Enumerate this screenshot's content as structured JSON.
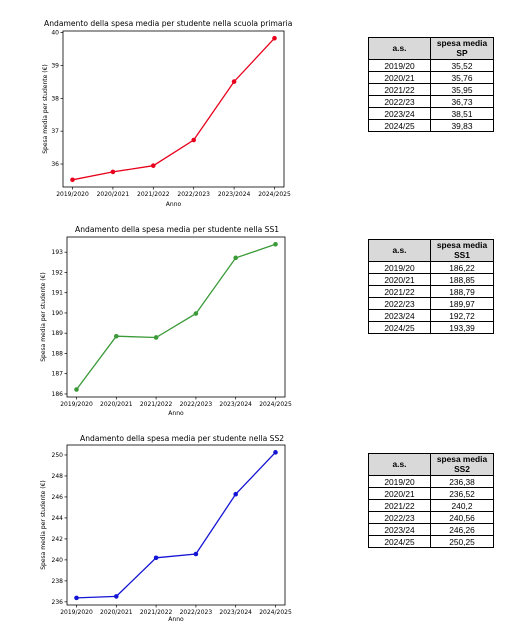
{
  "chart_data": [
    {
      "type": "line",
      "title": "Andamento della spesa media per studente nella scuola primaria",
      "xlabel": "Anno",
      "ylabel": "Spesa media per studente (€)",
      "categories": [
        "2019/2020",
        "2020/2021",
        "2021/2022",
        "2022/2023",
        "2023/2024",
        "2024/2025"
      ],
      "values": [
        35.52,
        35.76,
        35.95,
        36.73,
        38.51,
        39.83
      ],
      "ylim": [
        35.3,
        40.05
      ],
      "yticks": [
        36,
        37,
        38,
        39,
        40
      ],
      "color": "#e8001c",
      "grid": false,
      "legend": false
    },
    {
      "type": "line",
      "title": "Andamento della spesa media per studente nella SS1",
      "xlabel": "Anno",
      "ylabel": "Spesa media per studente (€)",
      "categories": [
        "2019/2020",
        "2020/2021",
        "2021/2022",
        "2022/2023",
        "2023/2024",
        "2024/2025"
      ],
      "values": [
        186.22,
        188.85,
        188.79,
        189.97,
        192.72,
        193.39
      ],
      "ylim": [
        185.85,
        193.75
      ],
      "yticks": [
        186,
        187,
        188,
        189,
        190,
        191,
        192,
        193
      ],
      "color": "#3a9a38",
      "grid": false,
      "legend": false
    },
    {
      "type": "line",
      "title": "Andamento della spesa media per studente nella SS2",
      "xlabel": "Anno",
      "ylabel": "Spesa media per studente (€)",
      "categories": [
        "2019/2020",
        "2020/2021",
        "2021/2022",
        "2022/2023",
        "2023/2024",
        "2024/2025"
      ],
      "values": [
        236.38,
        236.52,
        240.2,
        240.56,
        246.26,
        250.25
      ],
      "ylim": [
        235.7,
        250.95
      ],
      "yticks": [
        236,
        238,
        240,
        242,
        244,
        246,
        248,
        250
      ],
      "color": "#1414d4",
      "grid": false,
      "legend": false
    }
  ],
  "tables": [
    {
      "header": [
        "a.s.",
        "spesa media SP"
      ],
      "rows": [
        [
          "2019/20",
          "35,52"
        ],
        [
          "2020/21",
          "35,76"
        ],
        [
          "2021/22",
          "35,95"
        ],
        [
          "2022/23",
          "36,73"
        ],
        [
          "2023/24",
          "38,51"
        ],
        [
          "2024/25",
          "39,83"
        ]
      ]
    },
    {
      "header": [
        "a.s.",
        "spesa media SS1"
      ],
      "rows": [
        [
          "2019/20",
          "186,22"
        ],
        [
          "2020/21",
          "188,85"
        ],
        [
          "2021/22",
          "188,79"
        ],
        [
          "2022/23",
          "189,97"
        ],
        [
          "2023/24",
          "192,72"
        ],
        [
          "2024/25",
          "193,39"
        ]
      ]
    },
    {
      "header": [
        "a.s.",
        "spesa media SS2"
      ],
      "rows": [
        [
          "2019/20",
          "236,38"
        ],
        [
          "2020/21",
          "236,52"
        ],
        [
          "2021/22",
          "240,2"
        ],
        [
          "2022/23",
          "240,56"
        ],
        [
          "2023/24",
          "246,26"
        ],
        [
          "2024/25",
          "250,25"
        ]
      ]
    }
  ]
}
